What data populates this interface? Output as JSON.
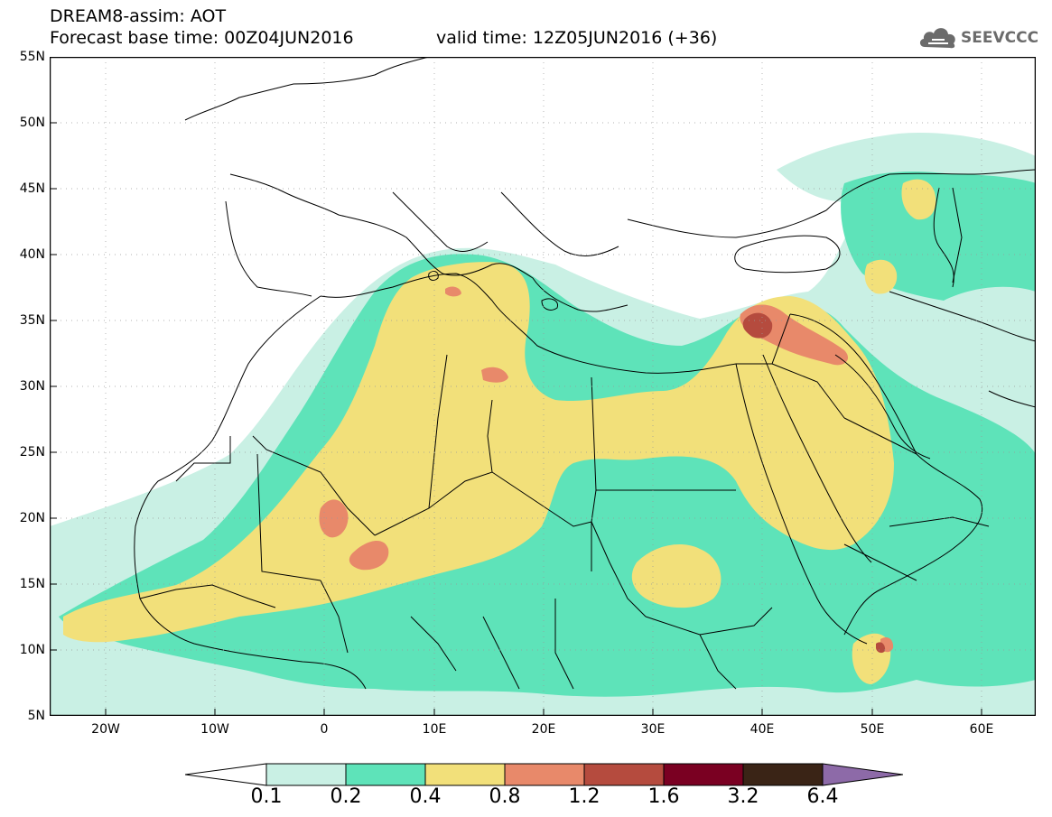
{
  "header": {
    "title_line1": "DREAM8-assim: AOT",
    "title_line2": "Forecast base time: 00Z04JUN2016",
    "valid_time": "valid time: 12Z05JUN2016 (+36)"
  },
  "logo": {
    "text": "SEEVCCC",
    "icon": "cloud-icon"
  },
  "map": {
    "variable": "AOT",
    "lat_labels": [
      "55N",
      "50N",
      "45N",
      "40N",
      "35N",
      "30N",
      "25N",
      "20N",
      "15N",
      "10N",
      "5N"
    ],
    "lon_labels": [
      "20W",
      "10W",
      "0",
      "10E",
      "20E",
      "30E",
      "40E",
      "50E",
      "60E"
    ],
    "lon_range": [
      -25,
      65
    ],
    "lat_range": [
      5,
      55
    ]
  },
  "colorbar": {
    "levels": [
      "0.1",
      "0.2",
      "0.4",
      "0.8",
      "1.2",
      "1.6",
      "3.2",
      "6.4"
    ],
    "colors": [
      "#ffffff",
      "#c9f0e4",
      "#5ee3b9",
      "#f2e07a",
      "#e8896a",
      "#b54b3e",
      "#7a0022",
      "#3a2416",
      "#8d6aa8"
    ]
  }
}
